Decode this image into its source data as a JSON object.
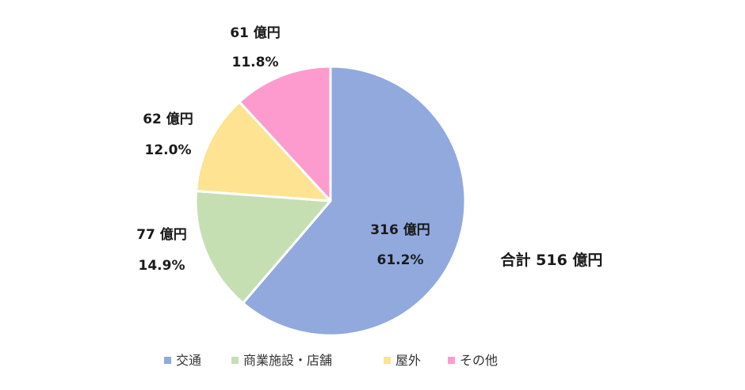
{
  "chart_data": {
    "type": "pie",
    "slices": [
      {
        "category": "交通",
        "amount_label": "316 億円",
        "percent_label": "61.2%",
        "value": 61.2,
        "color": "#91a9dd"
      },
      {
        "category": "商業施設・店舗",
        "amount_label": "77 億円",
        "percent_label": "14.9%",
        "value": 14.9,
        "color": "#c5dfb3"
      },
      {
        "category": "屋外",
        "amount_label": "62 億円",
        "percent_label": "12.0%",
        "value": 12.0,
        "color": "#fde392"
      },
      {
        "category": "その他",
        "amount_label": "61 億円",
        "percent_label": "11.8%",
        "value": 11.8,
        "color": "#fd9bce"
      }
    ],
    "start": "top",
    "direction": "clockwise",
    "legend_position": "bottom",
    "total_label": "合計 516 億円"
  }
}
